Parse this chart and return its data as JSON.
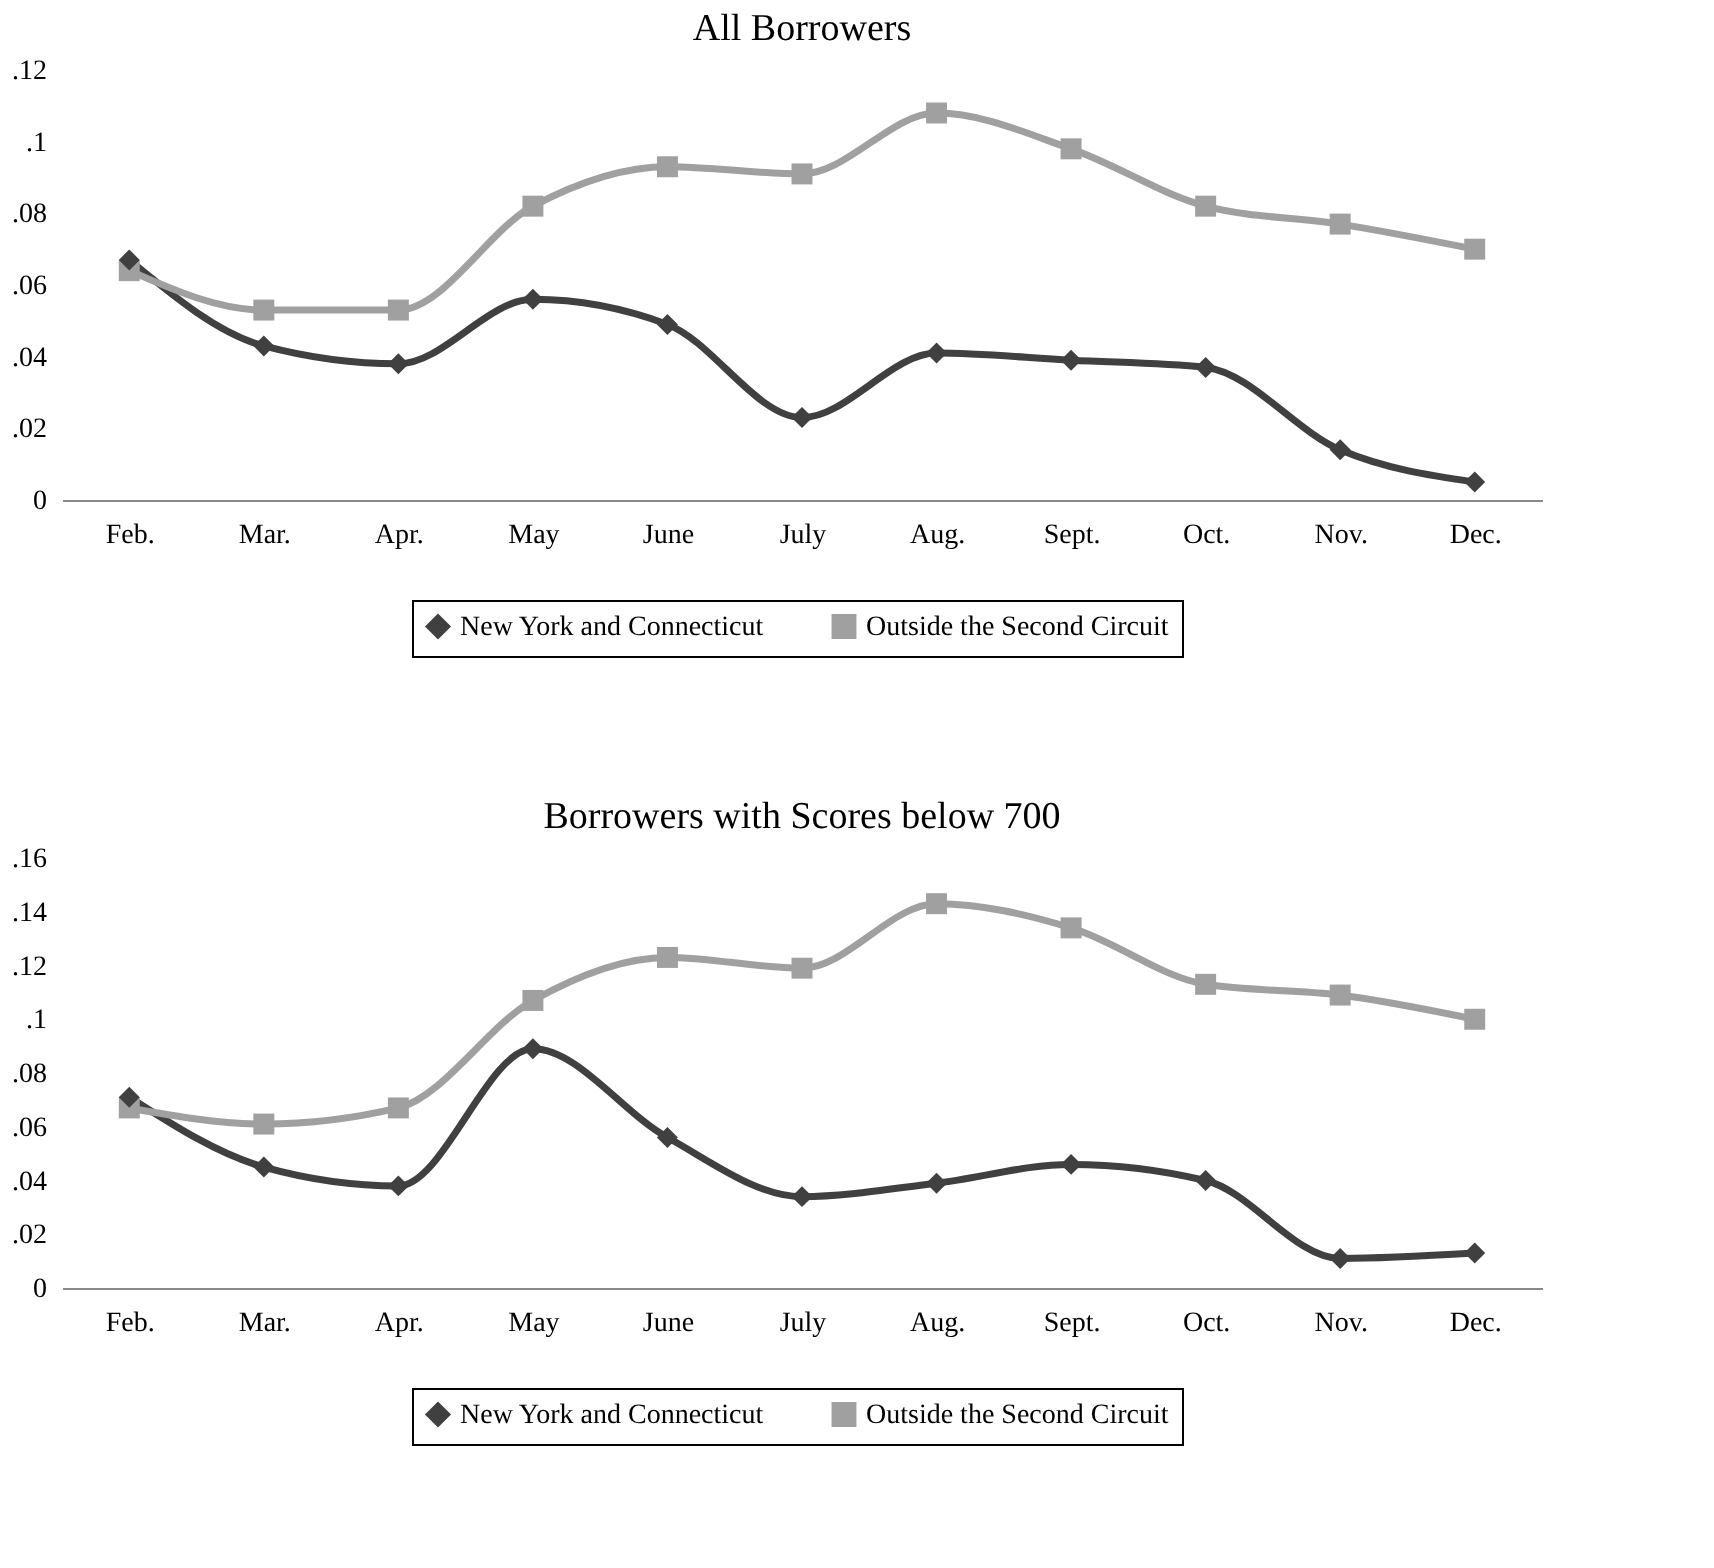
{
  "chart_data": [
    {
      "type": "line",
      "title": "All Borrowers",
      "categories": [
        "Feb.",
        "Mar.",
        "Apr.",
        "May",
        "June",
        "July",
        "Aug.",
        "Sept.",
        "Oct.",
        "Nov.",
        "Dec."
      ],
      "series": [
        {
          "name": "New York and Connecticut",
          "color": "#404040",
          "marker": "diamond",
          "values": [
            0.067,
            0.043,
            0.038,
            0.056,
            0.049,
            0.023,
            0.041,
            0.039,
            0.037,
            0.014,
            0.005
          ]
        },
        {
          "name": "Outside the Second Circuit",
          "color": "#a0a0a0",
          "marker": "square",
          "values": [
            0.064,
            0.053,
            0.053,
            0.082,
            0.093,
            0.091,
            0.108,
            0.098,
            0.082,
            0.077,
            0.07
          ]
        }
      ],
      "ylim": [
        0,
        0.12
      ],
      "yticks": [
        0,
        {
          "value": 0.02,
          "label": ".02"
        },
        {
          "value": 0.04,
          "label": ".04"
        },
        {
          "value": 0.06,
          "label": ".06"
        },
        {
          "value": 0.08,
          "label": ".08"
        },
        {
          "value": 0.1,
          "label": ".1"
        },
        {
          "value": 0.12,
          "label": ".12"
        }
      ],
      "grid": false,
      "legend": "bottom",
      "line_style": "solid"
    },
    {
      "type": "line",
      "title": "Borrowers with Scores below 700",
      "categories": [
        "Feb.",
        "Mar.",
        "Apr.",
        "May",
        "June",
        "July",
        "Aug.",
        "Sept.",
        "Oct.",
        "Nov.",
        "Dec."
      ],
      "series": [
        {
          "name": "New York and Connecticut",
          "color": "#404040",
          "marker": "diamond",
          "values": [
            0.071,
            0.045,
            0.038,
            0.089,
            0.056,
            0.034,
            0.039,
            0.046,
            0.04,
            0.011,
            0.013
          ]
        },
        {
          "name": "Outside the Second Circuit",
          "color": "#a0a0a0",
          "marker": "square",
          "values": [
            0.067,
            0.061,
            0.067,
            0.107,
            0.123,
            0.119,
            0.143,
            0.134,
            0.113,
            0.109,
            0.1
          ]
        }
      ],
      "ylim": [
        0,
        0.16
      ],
      "yticks": [
        0,
        {
          "value": 0.02,
          "label": ".02"
        },
        {
          "value": 0.04,
          "label": ".04"
        },
        {
          "value": 0.06,
          "label": ".06"
        },
        {
          "value": 0.08,
          "label": ".08"
        },
        {
          "value": 0.1,
          "label": ".1"
        },
        {
          "value": 0.12,
          "label": ".12"
        },
        {
          "value": 0.14,
          "label": ".14"
        },
        {
          "value": 0.16,
          "label": ".16"
        }
      ],
      "grid": false,
      "legend": "bottom",
      "line_style": "solid"
    }
  ]
}
